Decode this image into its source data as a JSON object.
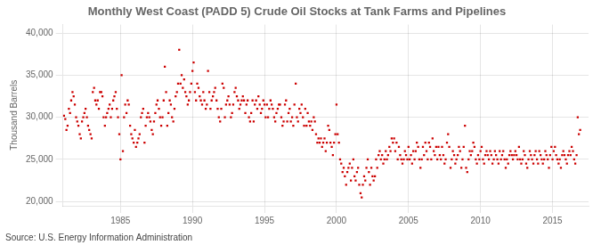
{
  "chart_data": {
    "type": "scatter",
    "title": "Monthly West Coast (PADD 5) Crude Oil Stocks at Tank Farms and Pipelines",
    "ylabel": "Thousand Barrels",
    "annotations": [
      "Source: U.S. Energy Information Administration"
    ],
    "color": "#CC0000",
    "marker": "square",
    "grid": true,
    "xlim": [
      1981.0,
      2017.5
    ],
    "ylim": [
      19500,
      41000
    ],
    "xticks": [
      1985,
      1990,
      1995,
      2000,
      2005,
      2010,
      2015
    ],
    "yticks": [
      {
        "value": 20000,
        "label": "20,000"
      },
      {
        "value": 25000,
        "label": "25,000"
      },
      {
        "value": 30000,
        "label": "30,000"
      },
      {
        "value": 35000,
        "label": "35,000"
      },
      {
        "value": 40000,
        "label": "40,000"
      }
    ],
    "x": [
      1981.08,
      1981.17,
      1981.25,
      1981.33,
      1981.42,
      1981.5,
      1981.58,
      1981.67,
      1981.75,
      1981.83,
      1981.92,
      1982.0,
      1982.08,
      1982.17,
      1982.25,
      1982.33,
      1982.42,
      1982.5,
      1982.58,
      1982.67,
      1982.75,
      1982.83,
      1982.92,
      1983.0,
      1983.08,
      1983.17,
      1983.25,
      1983.33,
      1983.42,
      1983.5,
      1983.58,
      1983.67,
      1983.75,
      1983.83,
      1983.92,
      1984.0,
      1984.08,
      1984.17,
      1984.25,
      1984.33,
      1984.42,
      1984.5,
      1984.58,
      1984.67,
      1984.75,
      1984.83,
      1984.92,
      1985.0,
      1985.08,
      1985.17,
      1985.25,
      1985.33,
      1985.42,
      1985.5,
      1985.58,
      1985.67,
      1985.75,
      1985.83,
      1985.92,
      1986.0,
      1986.08,
      1986.17,
      1986.25,
      1986.33,
      1986.42,
      1986.5,
      1986.58,
      1986.67,
      1986.75,
      1986.83,
      1986.92,
      1987.0,
      1987.08,
      1987.17,
      1987.25,
      1987.33,
      1987.42,
      1987.5,
      1987.58,
      1987.67,
      1987.75,
      1987.83,
      1987.92,
      1988.0,
      1988.08,
      1988.17,
      1988.25,
      1988.33,
      1988.42,
      1988.5,
      1988.58,
      1988.67,
      1988.75,
      1988.83,
      1988.92,
      1989.0,
      1989.08,
      1989.17,
      1989.25,
      1989.33,
      1989.42,
      1989.5,
      1989.58,
      1989.67,
      1989.75,
      1989.83,
      1989.92,
      1990.0,
      1990.08,
      1990.17,
      1990.25,
      1990.33,
      1990.42,
      1990.5,
      1990.58,
      1990.67,
      1990.75,
      1990.83,
      1990.92,
      1991.0,
      1991.08,
      1991.17,
      1991.25,
      1991.33,
      1991.42,
      1991.5,
      1991.58,
      1991.67,
      1991.75,
      1991.83,
      1991.92,
      1992.0,
      1992.08,
      1992.17,
      1992.25,
      1992.33,
      1992.42,
      1992.5,
      1992.58,
      1992.67,
      1992.75,
      1992.83,
      1992.92,
      1993.0,
      1993.08,
      1993.17,
      1993.25,
      1993.33,
      1993.42,
      1993.5,
      1993.58,
      1993.67,
      1993.75,
      1993.83,
      1993.92,
      1994.0,
      1994.08,
      1994.17,
      1994.25,
      1994.33,
      1994.42,
      1994.5,
      1994.58,
      1994.67,
      1994.75,
      1994.83,
      1994.92,
      1995.0,
      1995.08,
      1995.17,
      1995.25,
      1995.33,
      1995.42,
      1995.5,
      1995.58,
      1995.67,
      1995.75,
      1995.83,
      1995.92,
      1996.0,
      1996.08,
      1996.17,
      1996.25,
      1996.33,
      1996.42,
      1996.5,
      1996.58,
      1996.67,
      1996.75,
      1996.83,
      1996.92,
      1997.0,
      1997.08,
      1997.17,
      1997.25,
      1997.33,
      1997.42,
      1997.5,
      1997.58,
      1997.67,
      1997.75,
      1997.83,
      1997.92,
      1998.0,
      1998.08,
      1998.17,
      1998.25,
      1998.33,
      1998.42,
      1998.5,
      1998.58,
      1998.67,
      1998.75,
      1998.83,
      1998.92,
      1999.0,
      1999.08,
      1999.17,
      1999.25,
      1999.33,
      1999.42,
      1999.5,
      1999.58,
      1999.67,
      1999.75,
      1999.83,
      1999.92,
      2000.0,
      2000.08,
      2000.17,
      2000.25,
      2000.33,
      2000.42,
      2000.5,
      2000.58,
      2000.67,
      2000.75,
      2000.83,
      2000.92,
      2001.0,
      2001.08,
      2001.17,
      2001.25,
      2001.33,
      2001.42,
      2001.5,
      2001.58,
      2001.67,
      2001.75,
      2001.83,
      2001.92,
      2002.0,
      2002.08,
      2002.17,
      2002.25,
      2002.33,
      2002.42,
      2002.5,
      2002.58,
      2002.67,
      2002.75,
      2002.83,
      2002.92,
      2003.0,
      2003.08,
      2003.17,
      2003.25,
      2003.33,
      2003.42,
      2003.5,
      2003.58,
      2003.67,
      2003.75,
      2003.83,
      2003.92,
      2004.0,
      2004.08,
      2004.17,
      2004.25,
      2004.33,
      2004.42,
      2004.5,
      2004.58,
      2004.67,
      2004.75,
      2004.83,
      2004.92,
      2005.0,
      2005.08,
      2005.17,
      2005.25,
      2005.33,
      2005.42,
      2005.5,
      2005.58,
      2005.67,
      2005.75,
      2005.83,
      2005.92,
      2006.0,
      2006.08,
      2006.17,
      2006.25,
      2006.33,
      2006.42,
      2006.5,
      2006.58,
      2006.67,
      2006.75,
      2006.83,
      2006.92,
      2007.0,
      2007.08,
      2007.17,
      2007.25,
      2007.33,
      2007.42,
      2007.5,
      2007.58,
      2007.67,
      2007.75,
      2007.83,
      2007.92,
      2008.0,
      2008.08,
      2008.17,
      2008.25,
      2008.33,
      2008.42,
      2008.5,
      2008.58,
      2008.67,
      2008.75,
      2008.83,
      2008.92,
      2009.0,
      2009.08,
      2009.17,
      2009.25,
      2009.33,
      2009.42,
      2009.5,
      2009.58,
      2009.67,
      2009.75,
      2009.83,
      2009.92,
      2010.0,
      2010.08,
      2010.17,
      2010.25,
      2010.33,
      2010.42,
      2010.5,
      2010.58,
      2010.67,
      2010.75,
      2010.83,
      2010.92,
      2011.0,
      2011.08,
      2011.17,
      2011.25,
      2011.33,
      2011.42,
      2011.5,
      2011.58,
      2011.67,
      2011.75,
      2011.83,
      2011.92,
      2012.0,
      2012.08,
      2012.17,
      2012.25,
      2012.33,
      2012.42,
      2012.5,
      2012.58,
      2012.67,
      2012.75,
      2012.83,
      2012.92,
      2013.0,
      2013.08,
      2013.17,
      2013.25,
      2013.33,
      2013.42,
      2013.5,
      2013.58,
      2013.67,
      2013.75,
      2013.83,
      2013.92,
      2014.0,
      2014.08,
      2014.17,
      2014.25,
      2014.33,
      2014.42,
      2014.5,
      2014.58,
      2014.67,
      2014.75,
      2014.83,
      2014.92,
      2015.0,
      2015.08,
      2015.17,
      2015.25,
      2015.33,
      2015.42,
      2015.5,
      2015.58,
      2015.67,
      2015.75,
      2015.83,
      2015.92,
      2016.0,
      2016.08,
      2016.17,
      2016.25,
      2016.33,
      2016.42,
      2016.5,
      2016.58,
      2016.67,
      2016.75,
      2016.83,
      2016.92
    ],
    "values": [
      30200,
      29800,
      28500,
      29000,
      31000,
      30500,
      32000,
      33000,
      32500,
      31500,
      30000,
      29500,
      29000,
      28000,
      27500,
      29500,
      30000,
      30500,
      31000,
      30000,
      29000,
      28500,
      28000,
      27500,
      33000,
      33500,
      32000,
      31500,
      32000,
      31000,
      33000,
      33000,
      32500,
      30000,
      29000,
      30000,
      30500,
      31000,
      31500,
      30000,
      31000,
      32000,
      32500,
      33000,
      31000,
      30000,
      28000,
      25000,
      35000,
      26000,
      30000,
      31500,
      30500,
      32000,
      31500,
      29000,
      28000,
      27500,
      27000,
      28500,
      26500,
      27000,
      27500,
      28000,
      30000,
      30500,
      31000,
      27000,
      29000,
      30000,
      30500,
      30000,
      29500,
      28500,
      28000,
      29500,
      30500,
      31500,
      32000,
      31000,
      30000,
      29000,
      30000,
      32000,
      36000,
      33000,
      29000,
      30500,
      32000,
      31500,
      30000,
      29500,
      31000,
      32500,
      33000,
      34000,
      38000,
      34000,
      35000,
      33500,
      34500,
      33000,
      32500,
      31500,
      32000,
      33000,
      34000,
      35500,
      36500,
      33000,
      32000,
      34000,
      33500,
      32500,
      32000,
      31500,
      33000,
      32000,
      31000,
      31500,
      35500,
      33000,
      31000,
      32000,
      32500,
      33000,
      33500,
      32000,
      31000,
      30000,
      29500,
      31000,
      34000,
      33500,
      30000,
      31500,
      32000,
      32500,
      31500,
      30000,
      30500,
      31500,
      33000,
      33500,
      32500,
      32000,
      31000,
      31500,
      32000,
      32500,
      32000,
      30500,
      31500,
      32000,
      30000,
      29500,
      30500,
      32000,
      29500,
      31500,
      32000,
      31000,
      32500,
      31500,
      30500,
      31000,
      32000,
      31500,
      30000,
      31500,
      30000,
      31000,
      32000,
      31500,
      31000,
      30000,
      29500,
      30500,
      31000,
      31500,
      31500,
      30000,
      29000,
      29500,
      31500,
      32000,
      29500,
      30500,
      31000,
      29500,
      30000,
      29000,
      31500,
      34000,
      30000,
      29500,
      31000,
      30500,
      31500,
      30000,
      29000,
      31000,
      29000,
      30500,
      29500,
      29000,
      29500,
      28500,
      30000,
      29500,
      28000,
      27000,
      27500,
      27000,
      27500,
      26500,
      27000,
      27500,
      26000,
      27000,
      29000,
      28500,
      27000,
      26500,
      25500,
      27000,
      28000,
      31500,
      28000,
      27000,
      25000,
      24500,
      23500,
      24000,
      23000,
      22000,
      23500,
      24000,
      24500,
      22500,
      24000,
      25000,
      23000,
      22500,
      23500,
      24000,
      22000,
      21000,
      20500,
      22000,
      23000,
      22500,
      24000,
      25000,
      23500,
      22000,
      24000,
      23000,
      22500,
      23000,
      25000,
      24000,
      25500,
      26000,
      25000,
      25500,
      24500,
      25000,
      26000,
      25000,
      25500,
      26500,
      26000,
      27500,
      27000,
      27500,
      26000,
      27000,
      25000,
      26500,
      25500,
      25000,
      24500,
      25000,
      26000,
      25500,
      25000,
      26500,
      25000,
      25500,
      24500,
      26000,
      25000,
      26000,
      27000,
      26500,
      25000,
      24000,
      25000,
      26500,
      25500,
      27000,
      26000,
      25000,
      27000,
      26500,
      25000,
      27500,
      26000,
      25500,
      26500,
      25000,
      26500,
      25500,
      25000,
      26500,
      25500,
      24500,
      25000,
      27000,
      28000,
      26500,
      24000,
      25000,
      26000,
      25500,
      24500,
      25000,
      25500,
      26500,
      26000,
      24000,
      25000,
      26500,
      29000,
      24000,
      23500,
      25000,
      26000,
      25500,
      26000,
      27000,
      26500,
      25000,
      24500,
      25500,
      25000,
      26000,
      26500,
      25000,
      24500,
      25500,
      26000,
      25500,
      25000,
      26000,
      25500,
      24500,
      25000,
      26000,
      25500,
      25000,
      24500,
      26000,
      25000,
      25500,
      26000,
      25000,
      24000,
      25000,
      24500,
      25500,
      26000,
      25500,
      25000,
      25500,
      26000,
      25500,
      25000,
      26500,
      25000,
      24500,
      25000,
      26000,
      25500,
      24500,
      24000,
      25000,
      26000,
      25500,
      25000,
      24500,
      25500,
      26000,
      25000,
      24500,
      26000,
      25500,
      25000,
      24500,
      25000,
      26000,
      25500,
      25000,
      24000,
      25500,
      26500,
      25000,
      26000,
      26500,
      25500,
      25000,
      24500,
      25000,
      24000,
      25500,
      26000,
      25500,
      25000,
      24500,
      25500,
      26000,
      25500,
      26500,
      26000,
      25000,
      24500,
      25500,
      30000,
      28000,
      28500
    ]
  }
}
